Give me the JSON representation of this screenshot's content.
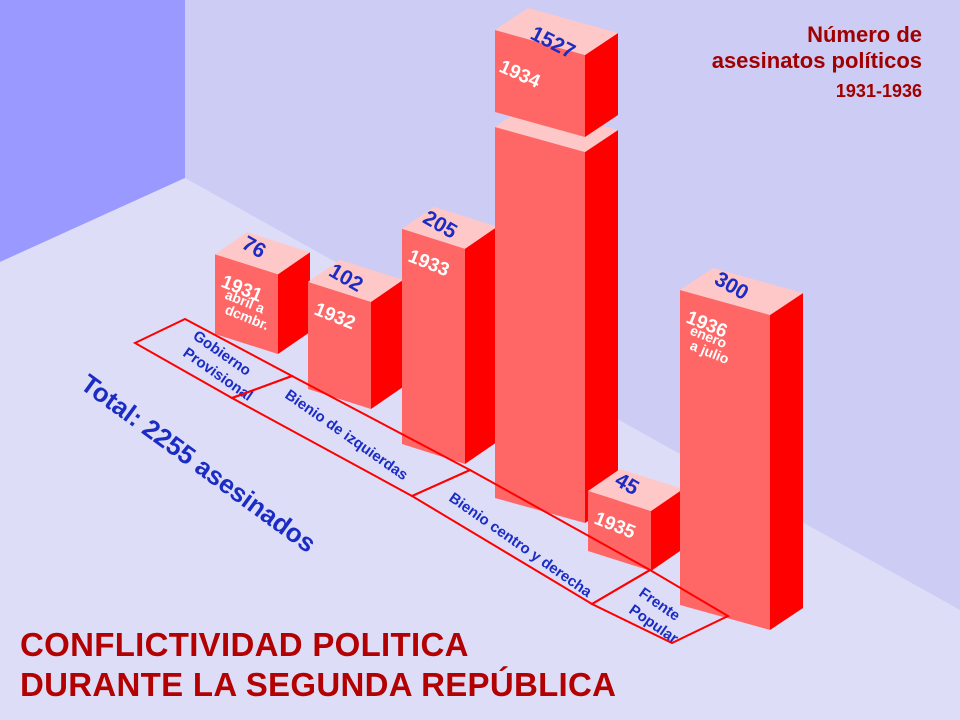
{
  "legend": {
    "line1": "Número de",
    "line2": "asesinatos políticos",
    "line3": "1931-1936"
  },
  "main_title": {
    "line1": "CONFLICTIVIDAD POLITICA",
    "line2": "DURANTE LA SEGUNDA REPÚBLICA"
  },
  "total_label": "Total: 2255 asesinados",
  "colors": {
    "front": "#ff6666",
    "side": "#ff0000",
    "top": "#ffc8c8",
    "value_text": "#1a2cc4",
    "year_text": "#ffffff",
    "period_border": "#ff0000",
    "period_text": "#1a2cc4",
    "title_text": "#b30000",
    "wall": "#9999ff",
    "background": "#ccccf5",
    "floor": "#ddddf8"
  },
  "chart_data": {
    "type": "bar",
    "title": "Número de asesinatos políticos 1931-1936",
    "categories": [
      "1931",
      "1932",
      "1933",
      "1934",
      "1935",
      "1936"
    ],
    "values": [
      76,
      102,
      205,
      1527,
      45,
      300
    ],
    "bars": [
      {
        "value": "76",
        "year": "1931",
        "sub": [
          "abril a",
          "dcmbr."
        ]
      },
      {
        "value": "102",
        "year": "1932",
        "sub": []
      },
      {
        "value": "205",
        "year": "1933",
        "sub": []
      },
      {
        "value": "1527",
        "year": "1934",
        "sub": []
      },
      {
        "value": "45",
        "year": "1935",
        "sub": []
      },
      {
        "value": "300",
        "year": "1936",
        "sub": [
          "enero",
          "a julio"
        ]
      }
    ],
    "periods": [
      {
        "lines": [
          "Gobierno",
          "Provisional"
        ]
      },
      {
        "lines": [
          "Bienio de izquierdas"
        ]
      },
      {
        "lines": [
          "Bienio centro y derecha"
        ]
      },
      {
        "lines": [
          "Frente",
          "Popular"
        ]
      }
    ],
    "axis_break": "1934",
    "total": 2255
  }
}
